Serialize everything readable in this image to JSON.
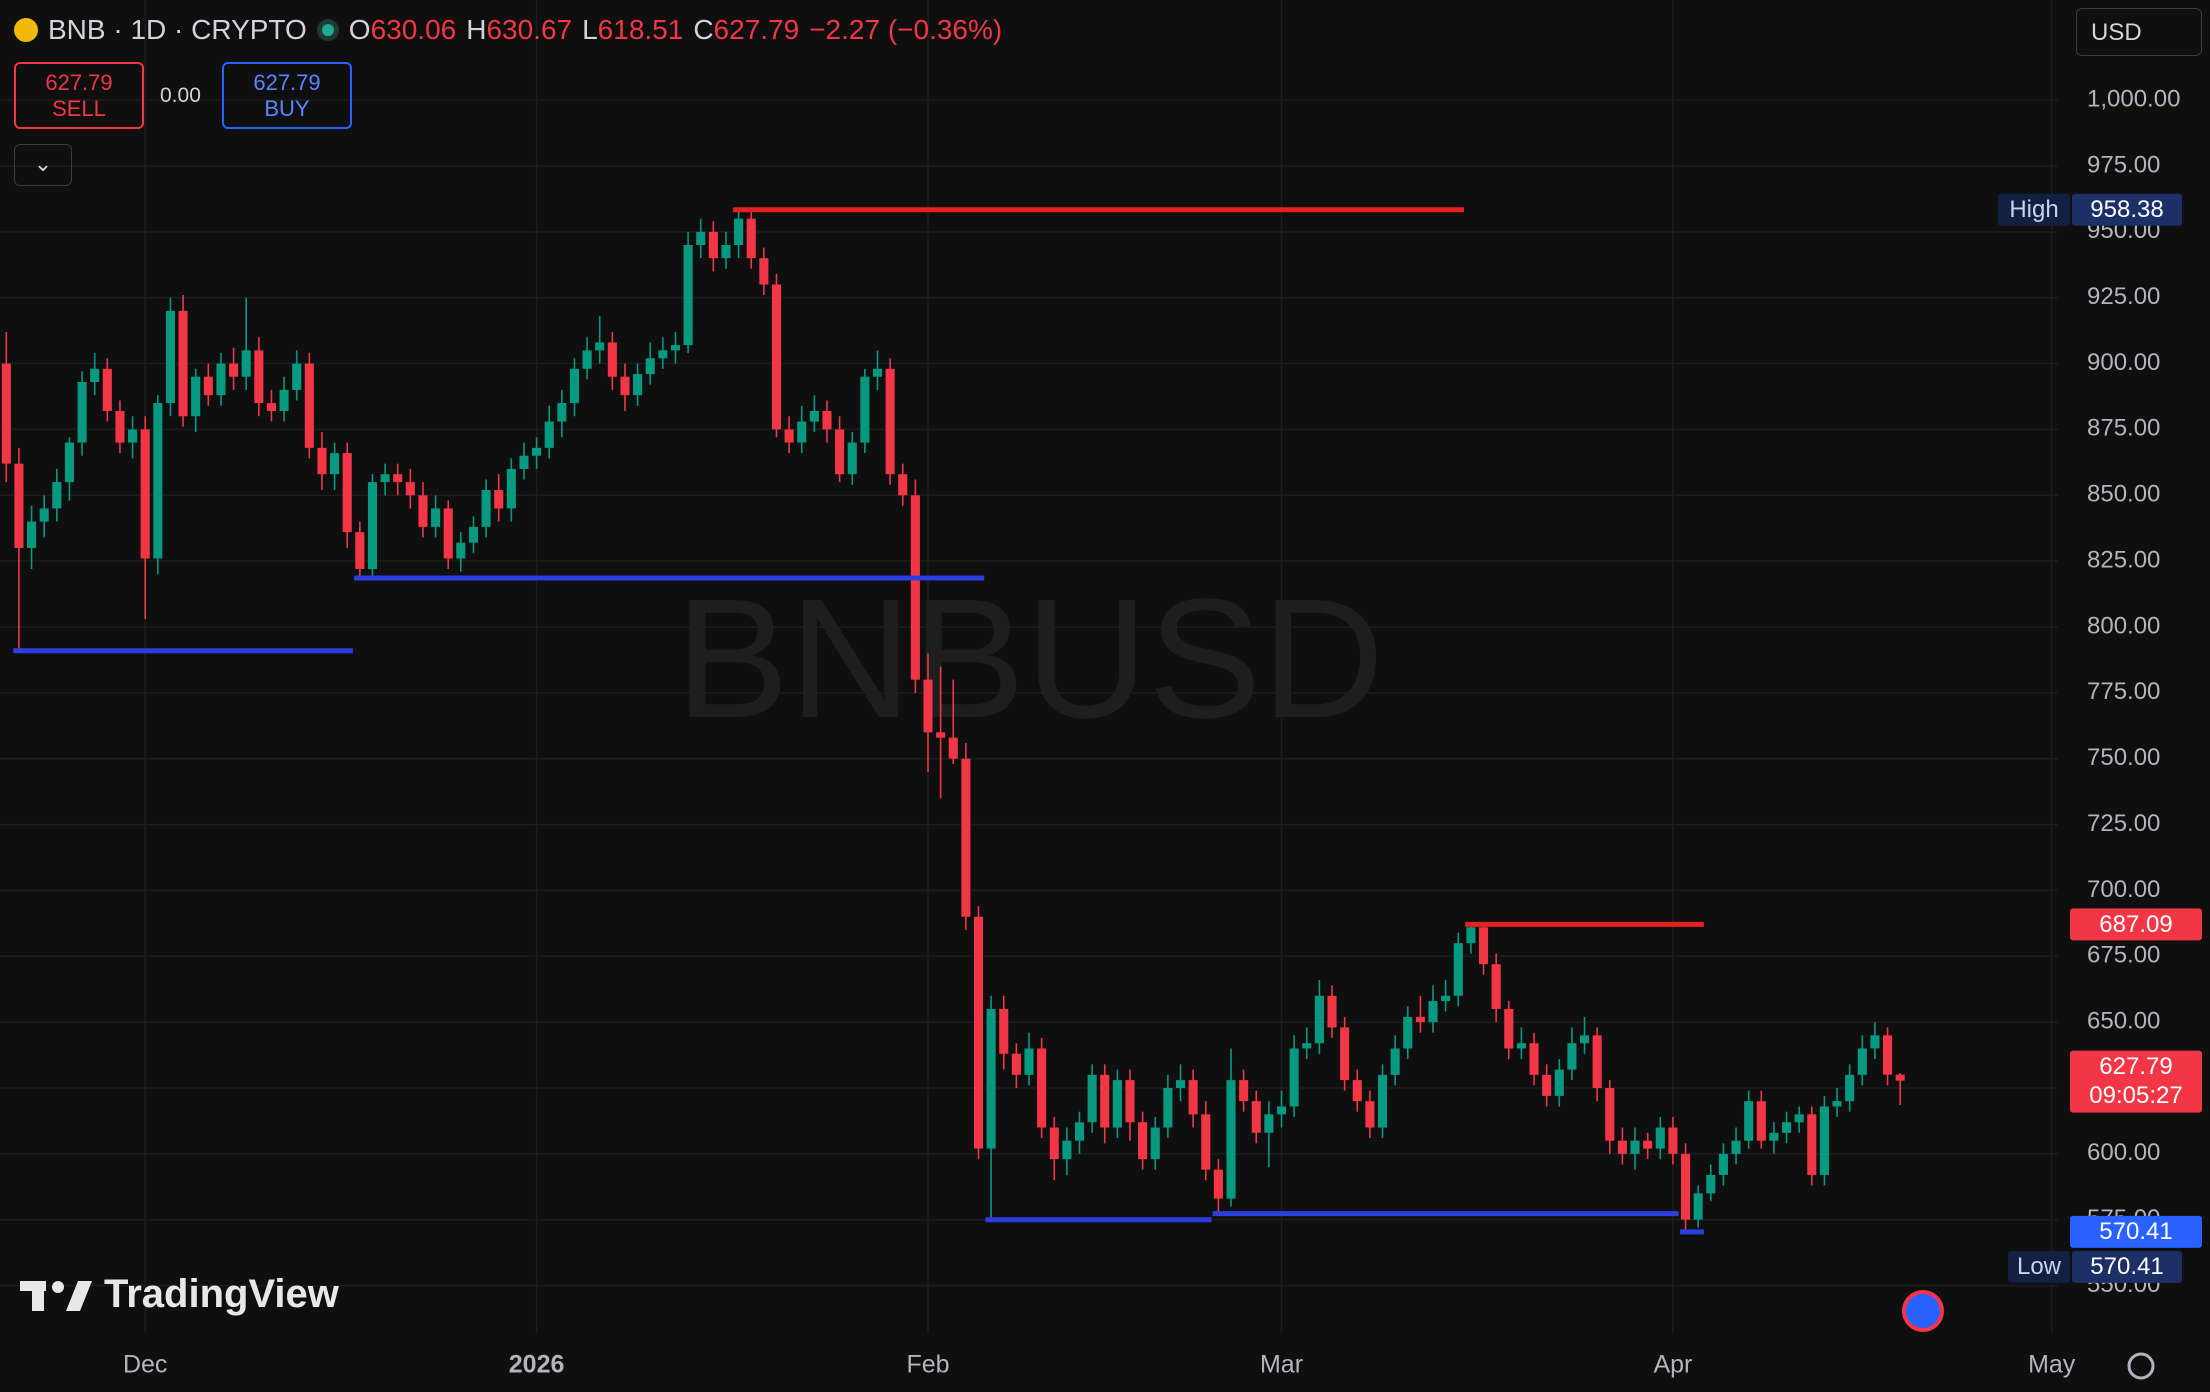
{
  "chart_data": {
    "type": "candlestick",
    "symbol": "BNB · 1D · CRYPTO",
    "watermark": "BNBUSD",
    "currency": "USD",
    "ohlc_labels": [
      "O",
      "H",
      "L",
      "C"
    ],
    "change": "−2.27 (−0.36%)",
    "spread": "0.00",
    "sell": "SELL",
    "buy": "BUY",
    "high_label": "High",
    "low_label": "Low",
    "countdown": "09:05:27",
    "brand": "TradingView",
    "up_color": "#089981",
    "down_color": "#f23645",
    "grid": true,
    "categories": [
      null,
      null,
      null,
      null,
      null,
      null,
      null,
      null,
      null,
      null,
      null,
      "Dec",
      null,
      null,
      null,
      null,
      null,
      null,
      null,
      null,
      null,
      null,
      null,
      null,
      null,
      null,
      null,
      null,
      null,
      null,
      null,
      null,
      null,
      null,
      null,
      null,
      null,
      null,
      null,
      null,
      null,
      null,
      "2026",
      null,
      null,
      null,
      null,
      null,
      null,
      null,
      null,
      null,
      null,
      null,
      null,
      null,
      null,
      null,
      null,
      null,
      null,
      null,
      null,
      null,
      null,
      null,
      null,
      null,
      null,
      null,
      null,
      null,
      null,
      "Feb",
      null,
      null,
      null,
      null,
      null,
      null,
      null,
      null,
      null,
      null,
      null,
      null,
      null,
      null,
      null,
      null,
      null,
      null,
      null,
      null,
      null,
      null,
      null,
      null,
      null,
      null,
      null,
      "Mar",
      null,
      null,
      null,
      null,
      null,
      null,
      null,
      null,
      null,
      null,
      null,
      null,
      null,
      null,
      null,
      null,
      null,
      null,
      null,
      null,
      null,
      null,
      null,
      null,
      null,
      null,
      null,
      null,
      null,
      null,
      "Apr",
      null,
      null,
      null,
      null,
      null,
      null,
      null,
      null,
      null,
      null,
      null,
      null,
      null,
      null,
      null,
      null,
      null,
      null,
      null,
      null,
      null,
      null,
      null,
      null,
      null,
      null,
      null,
      null,
      null,
      "May"
    ],
    "candles": [
      [
        900,
        912,
        855,
        862
      ],
      [
        862,
        868,
        791,
        830
      ],
      [
        830,
        846,
        822,
        840
      ],
      [
        840,
        850,
        834,
        845
      ],
      [
        845,
        860,
        840,
        855
      ],
      [
        855,
        872,
        848,
        870
      ],
      [
        870,
        897,
        865,
        893
      ],
      [
        893,
        904,
        888,
        898
      ],
      [
        898,
        902,
        878,
        882
      ],
      [
        882,
        886,
        866,
        870
      ],
      [
        870,
        880,
        864,
        875
      ],
      [
        875,
        880,
        803,
        826
      ],
      [
        826,
        888,
        820,
        885
      ],
      [
        885,
        925,
        880,
        920
      ],
      [
        920,
        926,
        876,
        880
      ],
      [
        880,
        898,
        874,
        895
      ],
      [
        895,
        900,
        884,
        888
      ],
      [
        888,
        904,
        884,
        900
      ],
      [
        900,
        906,
        890,
        895
      ],
      [
        895,
        925,
        890,
        905
      ],
      [
        905,
        910,
        880,
        885
      ],
      [
        885,
        890,
        878,
        882
      ],
      [
        882,
        895,
        878,
        890
      ],
      [
        890,
        905,
        886,
        900
      ],
      [
        900,
        904,
        864,
        868
      ],
      [
        868,
        874,
        852,
        858
      ],
      [
        858,
        870,
        852,
        866
      ],
      [
        866,
        870,
        830,
        836
      ],
      [
        836,
        840,
        818,
        822
      ],
      [
        822,
        858,
        818,
        855
      ],
      [
        855,
        862,
        850,
        858
      ],
      [
        858,
        862,
        850,
        855
      ],
      [
        855,
        860,
        845,
        850
      ],
      [
        850,
        855,
        834,
        838
      ],
      [
        838,
        850,
        834,
        845
      ],
      [
        845,
        848,
        822,
        826
      ],
      [
        826,
        836,
        821,
        832
      ],
      [
        832,
        842,
        828,
        838
      ],
      [
        838,
        856,
        834,
        852
      ],
      [
        852,
        858,
        840,
        845
      ],
      [
        845,
        864,
        840,
        860
      ],
      [
        860,
        870,
        856,
        865
      ],
      [
        865,
        872,
        860,
        868
      ],
      [
        868,
        884,
        864,
        878
      ],
      [
        878,
        890,
        872,
        885
      ],
      [
        885,
        902,
        880,
        898
      ],
      [
        898,
        910,
        894,
        905
      ],
      [
        905,
        918,
        900,
        908
      ],
      [
        908,
        912,
        890,
        895
      ],
      [
        895,
        900,
        882,
        888
      ],
      [
        888,
        900,
        884,
        896
      ],
      [
        896,
        908,
        892,
        902
      ],
      [
        902,
        910,
        898,
        905
      ],
      [
        905,
        912,
        900,
        907
      ],
      [
        907,
        950,
        904,
        945
      ],
      [
        945,
        955,
        940,
        950
      ],
      [
        950,
        954,
        935,
        940
      ],
      [
        940,
        950,
        936,
        945
      ],
      [
        945,
        958.38,
        940,
        955
      ],
      [
        955,
        958,
        936,
        940
      ],
      [
        940,
        944,
        926,
        930
      ],
      [
        930,
        934,
        872,
        875
      ],
      [
        875,
        880,
        866,
        870
      ],
      [
        870,
        884,
        866,
        878
      ],
      [
        878,
        888,
        874,
        882
      ],
      [
        882,
        886,
        870,
        875
      ],
      [
        875,
        880,
        855,
        858
      ],
      [
        858,
        874,
        854,
        870
      ],
      [
        870,
        898,
        866,
        895
      ],
      [
        895,
        905,
        890,
        898
      ],
      [
        898,
        902,
        854,
        858
      ],
      [
        858,
        862,
        846,
        850
      ],
      [
        850,
        856,
        775,
        780
      ],
      [
        780,
        790,
        745,
        760
      ],
      [
        760,
        785,
        735,
        758
      ],
      [
        758,
        780,
        748,
        750
      ],
      [
        750,
        756,
        685,
        690
      ],
      [
        690,
        694,
        598,
        602
      ],
      [
        602,
        660,
        575,
        655
      ],
      [
        655,
        660,
        632,
        638
      ],
      [
        638,
        642,
        625,
        630
      ],
      [
        630,
        646,
        626,
        640
      ],
      [
        640,
        644,
        606,
        610
      ],
      [
        610,
        614,
        590,
        598
      ],
      [
        598,
        610,
        592,
        605
      ],
      [
        605,
        616,
        600,
        612
      ],
      [
        612,
        634,
        608,
        630
      ],
      [
        630,
        634,
        604,
        610
      ],
      [
        610,
        632,
        606,
        628
      ],
      [
        628,
        632,
        605,
        612
      ],
      [
        612,
        616,
        594,
        598
      ],
      [
        598,
        614,
        594,
        610
      ],
      [
        610,
        630,
        606,
        625
      ],
      [
        625,
        634,
        620,
        628
      ],
      [
        628,
        632,
        610,
        615
      ],
      [
        615,
        620,
        590,
        594
      ],
      [
        594,
        598,
        577,
        583
      ],
      [
        583,
        640,
        580,
        628
      ],
      [
        628,
        632,
        616,
        620
      ],
      [
        620,
        624,
        604,
        608
      ],
      [
        608,
        620,
        595,
        615
      ],
      [
        615,
        624,
        610,
        618
      ],
      [
        618,
        645,
        614,
        640
      ],
      [
        640,
        648,
        636,
        642
      ],
      [
        642,
        666,
        638,
        660
      ],
      [
        660,
        664,
        644,
        648
      ],
      [
        648,
        652,
        624,
        628
      ],
      [
        628,
        632,
        616,
        620
      ],
      [
        620,
        624,
        606,
        610
      ],
      [
        610,
        634,
        606,
        630
      ],
      [
        630,
        645,
        626,
        640
      ],
      [
        640,
        656,
        636,
        652
      ],
      [
        652,
        660,
        646,
        650
      ],
      [
        650,
        664,
        646,
        658
      ],
      [
        658,
        666,
        654,
        660
      ],
      [
        660,
        684,
        656,
        680
      ],
      [
        680,
        687.09,
        676,
        686
      ],
      [
        686,
        688,
        668,
        672
      ],
      [
        672,
        676,
        650,
        655
      ],
      [
        655,
        658,
        636,
        640
      ],
      [
        640,
        648,
        636,
        642
      ],
      [
        642,
        646,
        626,
        630
      ],
      [
        630,
        634,
        618,
        622
      ],
      [
        622,
        636,
        618,
        632
      ],
      [
        632,
        648,
        628,
        642
      ],
      [
        642,
        652,
        638,
        645
      ],
      [
        645,
        648,
        620,
        625
      ],
      [
        625,
        628,
        600,
        605
      ],
      [
        605,
        610,
        596,
        600
      ],
      [
        600,
        610,
        594,
        605
      ],
      [
        605,
        608,
        598,
        602
      ],
      [
        602,
        614,
        598,
        610
      ],
      [
        610,
        614,
        596,
        600
      ],
      [
        600,
        604,
        570.41,
        575
      ],
      [
        575,
        588,
        572,
        585
      ],
      [
        585,
        596,
        582,
        592
      ],
      [
        592,
        604,
        588,
        600
      ],
      [
        600,
        610,
        596,
        605
      ],
      [
        605,
        624,
        602,
        620
      ],
      [
        620,
        624,
        602,
        605
      ],
      [
        605,
        612,
        600,
        608
      ],
      [
        608,
        616,
        604,
        612
      ],
      [
        612,
        618,
        608,
        615
      ],
      [
        615,
        618,
        588,
        592
      ],
      [
        592,
        622,
        588,
        618
      ],
      [
        618,
        625,
        614,
        620
      ],
      [
        620,
        634,
        616,
        630
      ],
      [
        630,
        645,
        626,
        640
      ],
      [
        640,
        650,
        636,
        645
      ],
      [
        645,
        648,
        626,
        630.06
      ],
      [
        630.06,
        630.67,
        618.51,
        627.79
      ],
      null,
      null,
      null,
      null,
      null,
      null,
      null,
      null,
      null,
      null,
      null,
      null
    ],
    "ylim": [
      532,
      1038
    ],
    "yticks": [
      {
        "value": 550,
        "label": "550.00"
      },
      {
        "value": 575,
        "label": "575.00"
      },
      {
        "value": 600,
        "label": "600.00"
      },
      {
        "value": 625,
        "label": "625.00"
      },
      {
        "value": 650,
        "label": "650.00"
      },
      {
        "value": 675,
        "label": "675.00"
      },
      {
        "value": 700,
        "label": "700.00"
      },
      {
        "value": 725,
        "label": "725.00"
      },
      {
        "value": 750,
        "label": "750.00"
      },
      {
        "value": 775,
        "label": "775.00"
      },
      {
        "value": 800,
        "label": "800.00"
      },
      {
        "value": 825,
        "label": "825.00"
      },
      {
        "value": 850,
        "label": "850.00"
      },
      {
        "value": 875,
        "label": "875.00"
      },
      {
        "value": 900,
        "label": "900.00"
      },
      {
        "value": 925,
        "label": "925.00"
      },
      {
        "value": 950,
        "label": "950.00"
      },
      {
        "value": 975,
        "label": "975.00"
      },
      {
        "value": 1000,
        "label": "1,000.00"
      }
    ],
    "levels": [
      {
        "value": 958.38,
        "from": 58,
        "to": 115,
        "color": "#e52121"
      },
      {
        "value": 791,
        "from": 1,
        "to": 27,
        "color": "#2b3ee0"
      },
      {
        "value": 818.6,
        "from": 28,
        "to": 77,
        "color": "#2b3ee0"
      },
      {
        "value": 575,
        "from": 78,
        "to": 95,
        "color": "#2b3ee0"
      },
      {
        "value": 577.3,
        "from": 96,
        "to": 132,
        "color": "#2b3ee0"
      },
      {
        "value": 570.41,
        "from": 133,
        "to": 134,
        "color": "#2b3ee0"
      },
      {
        "value": 687.09,
        "from": 116,
        "to": 134,
        "color": "#e52121"
      }
    ]
  }
}
